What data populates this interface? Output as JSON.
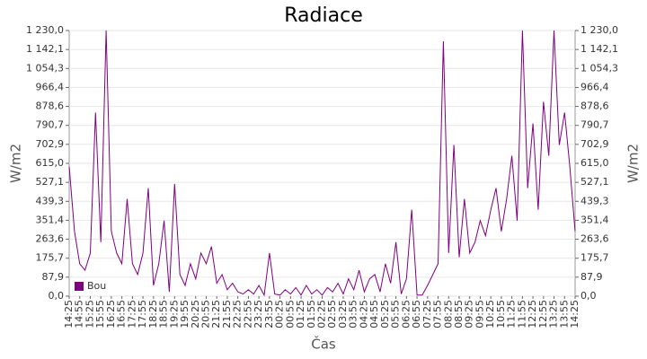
{
  "chart_data": {
    "type": "line",
    "title": "Radiace",
    "y_label": "W/m2",
    "x_label": "Čas",
    "legend_position": "lower left",
    "grid": true,
    "categories": [
      "14:25",
      null,
      "14:55",
      null,
      "15:25",
      null,
      "15:55",
      null,
      "16:25",
      null,
      "16:55",
      null,
      "17:25",
      null,
      "17:55",
      null,
      "18:25",
      null,
      "18:55",
      null,
      "19:25",
      null,
      "19:55",
      null,
      "20:25",
      null,
      "20:55",
      null,
      "21:25",
      null,
      "21:55",
      null,
      "22:25",
      null,
      "22:55",
      null,
      "23:25",
      null,
      "23:55",
      null,
      "00:25",
      null,
      "00:55",
      null,
      "01:25",
      null,
      "01:55",
      null,
      "02:25",
      null,
      "02:55",
      null,
      "03:25",
      null,
      "03:55",
      null,
      "04:25",
      null,
      "04:55",
      null,
      "05:25",
      null,
      "05:55",
      null,
      "06:25",
      null,
      "06:55",
      null,
      "07:25",
      null,
      "07:55",
      null,
      "08:25",
      null,
      "08:55",
      null,
      "09:25",
      null,
      "09:55",
      null,
      "10:25",
      null,
      "10:55",
      null,
      "11:25",
      null,
      "11:55",
      null,
      "12:25",
      null,
      "12:55",
      null,
      "13:25",
      null,
      "13:55",
      null,
      "14:25"
    ],
    "series": [
      {
        "name": "Bou",
        "color": "#800080",
        "values": [
          600,
          300,
          150,
          120,
          200,
          850,
          250,
          1230,
          300,
          200,
          150,
          450,
          150,
          100,
          200,
          500,
          50,
          150,
          350,
          20,
          520,
          100,
          50,
          150,
          80,
          200,
          150,
          230,
          60,
          100,
          30,
          60,
          20,
          10,
          30,
          10,
          50,
          5,
          200,
          10,
          5,
          30,
          10,
          40,
          5,
          50,
          10,
          30,
          5,
          40,
          20,
          60,
          10,
          80,
          30,
          120,
          20,
          80,
          100,
          20,
          150,
          60,
          250,
          10,
          80,
          400,
          5,
          5,
          50,
          100,
          150,
          1180,
          200,
          700,
          180,
          450,
          200,
          250,
          350,
          280,
          400,
          500,
          300,
          450,
          650,
          350,
          1230,
          500,
          800,
          400,
          900,
          650,
          1230,
          700,
          850,
          600,
          300
        ]
      }
    ],
    "ylim": [
      0,
      1230
    ],
    "yticks": [
      {
        "value": 0,
        "label": "0,0"
      },
      {
        "value": 87.9,
        "label": "87,9"
      },
      {
        "value": 175.7,
        "label": "175,7"
      },
      {
        "value": 263.6,
        "label": "263,6"
      },
      {
        "value": 351.4,
        "label": "351,4"
      },
      {
        "value": 439.3,
        "label": "439,3"
      },
      {
        "value": 527.1,
        "label": "527,1"
      },
      {
        "value": 615,
        "label": "615,0"
      },
      {
        "value": 702.9,
        "label": "702,9"
      },
      {
        "value": 790.7,
        "label": "790,7"
      },
      {
        "value": 878.6,
        "label": "878,6"
      },
      {
        "value": 966.4,
        "label": "966,4"
      },
      {
        "value": 1054.3,
        "label": "1 054,3"
      },
      {
        "value": 1142.1,
        "label": "1 142,1"
      },
      {
        "value": 1230,
        "label": "1 230,0"
      }
    ]
  }
}
